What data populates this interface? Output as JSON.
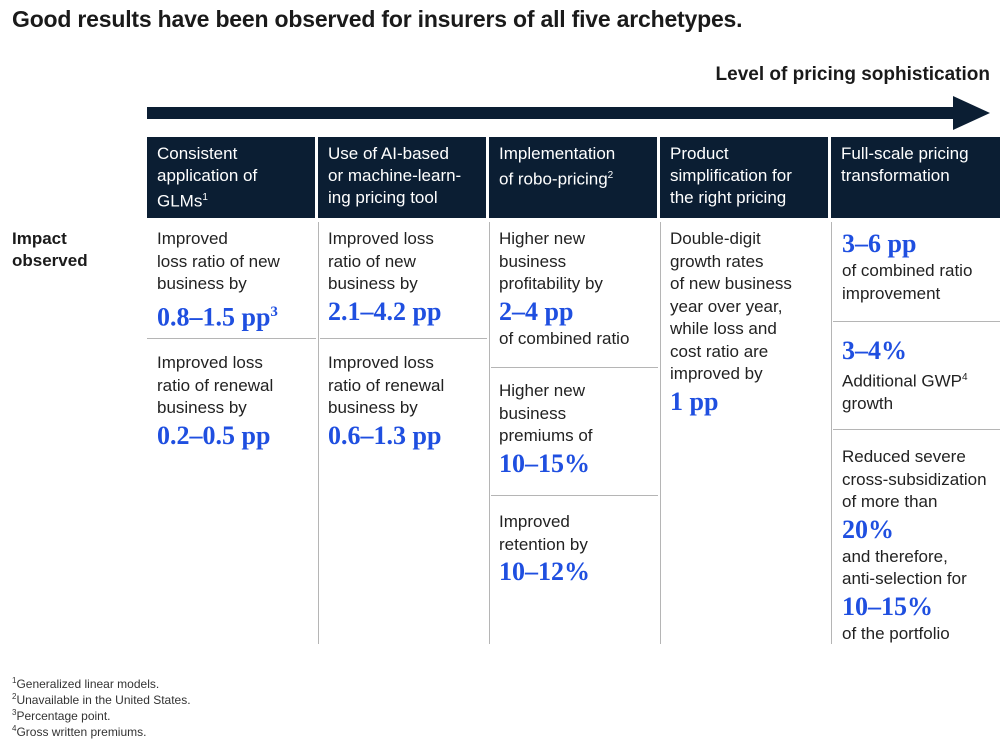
{
  "title": "Good results have been observed for insurers of all five archetypes.",
  "axis_label": "Level of pricing sophistication",
  "row_label": [
    "Impact",
    "observed"
  ],
  "columns": [
    {
      "header": [
        "Consistent",
        "application of",
        "GLMs"
      ],
      "header_sup": "1",
      "impacts": [
        {
          "lines": [
            "Improved",
            "loss ratio of new",
            "business by"
          ],
          "value": "0.8–1.5 pp",
          "value_sup": "3"
        },
        {
          "lines": [
            "Improved loss",
            "ratio of renewal",
            "business by"
          ],
          "value": "0.2–0.5 pp"
        }
      ]
    },
    {
      "header": [
        "Use of AI-based",
        "or machine-learn-",
        "ing pricing tool"
      ],
      "impacts": [
        {
          "lines": [
            "Improved loss",
            "ratio of new",
            "business by"
          ],
          "value": "2.1–4.2 pp"
        },
        {
          "lines": [
            "Improved loss",
            "ratio of renewal",
            "business by"
          ],
          "value": "0.6–1.3 pp"
        }
      ]
    },
    {
      "header": [
        "Implementation",
        "of robo-pricing"
      ],
      "header_sup": "2",
      "impacts": [
        {
          "lines": [
            "Higher new",
            "business",
            "profitability by"
          ],
          "value": "2–4 pp",
          "after": [
            "of combined ratio"
          ]
        },
        {
          "lines": [
            "Higher new",
            "business",
            "premiums of"
          ],
          "value": "10–15%"
        },
        {
          "lines": [
            "Improved",
            "retention by"
          ],
          "value": "10–12%"
        }
      ]
    },
    {
      "header": [
        "Product",
        "simplification for",
        "the right pricing"
      ],
      "impacts": [
        {
          "lines": [
            "Double-digit",
            "growth rates",
            "of new business",
            "year over year,",
            "while loss and",
            "cost ratio are",
            "improved by"
          ],
          "value": "1 pp"
        }
      ]
    },
    {
      "header": [
        "Full-scale pricing",
        "transformation"
      ],
      "impacts": [
        {
          "value": "3–6 pp",
          "after": [
            "of combined ratio",
            "improvement"
          ]
        },
        {
          "value": "3–4%",
          "after": [
            "Additional GWP",
            "growth"
          ],
          "after_sup": "4"
        },
        {
          "lines": [
            "Reduced severe",
            "cross-subsidization",
            "of more than"
          ],
          "value": "20%",
          "after": [
            "and therefore,",
            "anti-selection for"
          ],
          "value2": "10–15%",
          "after2": [
            "of the portfolio"
          ]
        }
      ]
    }
  ],
  "footnotes": [
    {
      "num": "1",
      "text": "Generalized linear models."
    },
    {
      "num": "2",
      "text": "Unavailable in the United States."
    },
    {
      "num": "3",
      "text": "Percentage point."
    },
    {
      "num": "4",
      "text": "Gross written premiums."
    }
  ],
  "colors": {
    "header_bg": "#0b1e33",
    "accent": "#1f4fe0",
    "divider": "#b5b5b5"
  }
}
